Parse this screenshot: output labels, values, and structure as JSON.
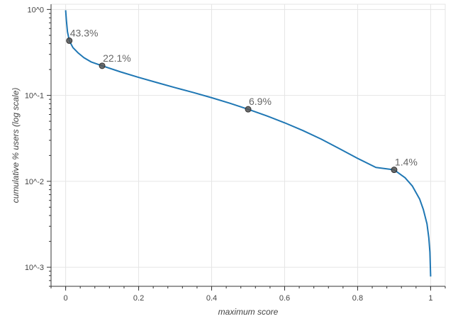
{
  "chart_data": {
    "type": "line",
    "xlabel": "maximum score",
    "ylabel": "cumulative % users (log scale)",
    "xlim": [
      -0.04,
      1.04
    ],
    "ylim": [
      0.0006,
      1.15
    ],
    "y_scale": "log",
    "grid": true,
    "x_ticks": [
      {
        "value": 0,
        "label": "0"
      },
      {
        "value": 0.2,
        "label": "0.2"
      },
      {
        "value": 0.4,
        "label": "0.4"
      },
      {
        "value": 0.6,
        "label": "0.6"
      },
      {
        "value": 0.8,
        "label": "0.8"
      },
      {
        "value": 1,
        "label": "1"
      }
    ],
    "y_ticks": [
      {
        "value": 1,
        "label": "10^0"
      },
      {
        "value": 0.1,
        "label": "10^-1"
      },
      {
        "value": 0.01,
        "label": "10^-2"
      },
      {
        "value": 0.001,
        "label": "10^-3"
      }
    ],
    "series": [
      {
        "color": "#1f77b4",
        "x": [
          0,
          0.002,
          0.005,
          0.01,
          0.02,
          0.035,
          0.05,
          0.07,
          0.1,
          0.15,
          0.2,
          0.25,
          0.3,
          0.35,
          0.4,
          0.45,
          0.5,
          0.55,
          0.6,
          0.65,
          0.7,
          0.75,
          0.8,
          0.85,
          0.9,
          0.93,
          0.95,
          0.97,
          0.98,
          0.99,
          0.995,
          0.998,
          1
        ],
        "y": [
          0.98,
          0.75,
          0.55,
          0.433,
          0.36,
          0.31,
          0.275,
          0.245,
          0.221,
          0.188,
          0.162,
          0.141,
          0.123,
          0.108,
          0.094,
          0.081,
          0.069,
          0.058,
          0.048,
          0.039,
          0.031,
          0.024,
          0.0185,
          0.0145,
          0.0136,
          0.011,
          0.0088,
          0.0062,
          0.0047,
          0.0032,
          0.0022,
          0.0015,
          0.00078
        ]
      }
    ],
    "markers": [
      {
        "x": 0.01,
        "y": 0.433,
        "label": "43.3%"
      },
      {
        "x": 0.1,
        "y": 0.221,
        "label": "22.1%"
      },
      {
        "x": 0.5,
        "y": 0.069,
        "label": "6.9%"
      },
      {
        "x": 0.9,
        "y": 0.0136,
        "label": "1.4%"
      }
    ]
  }
}
